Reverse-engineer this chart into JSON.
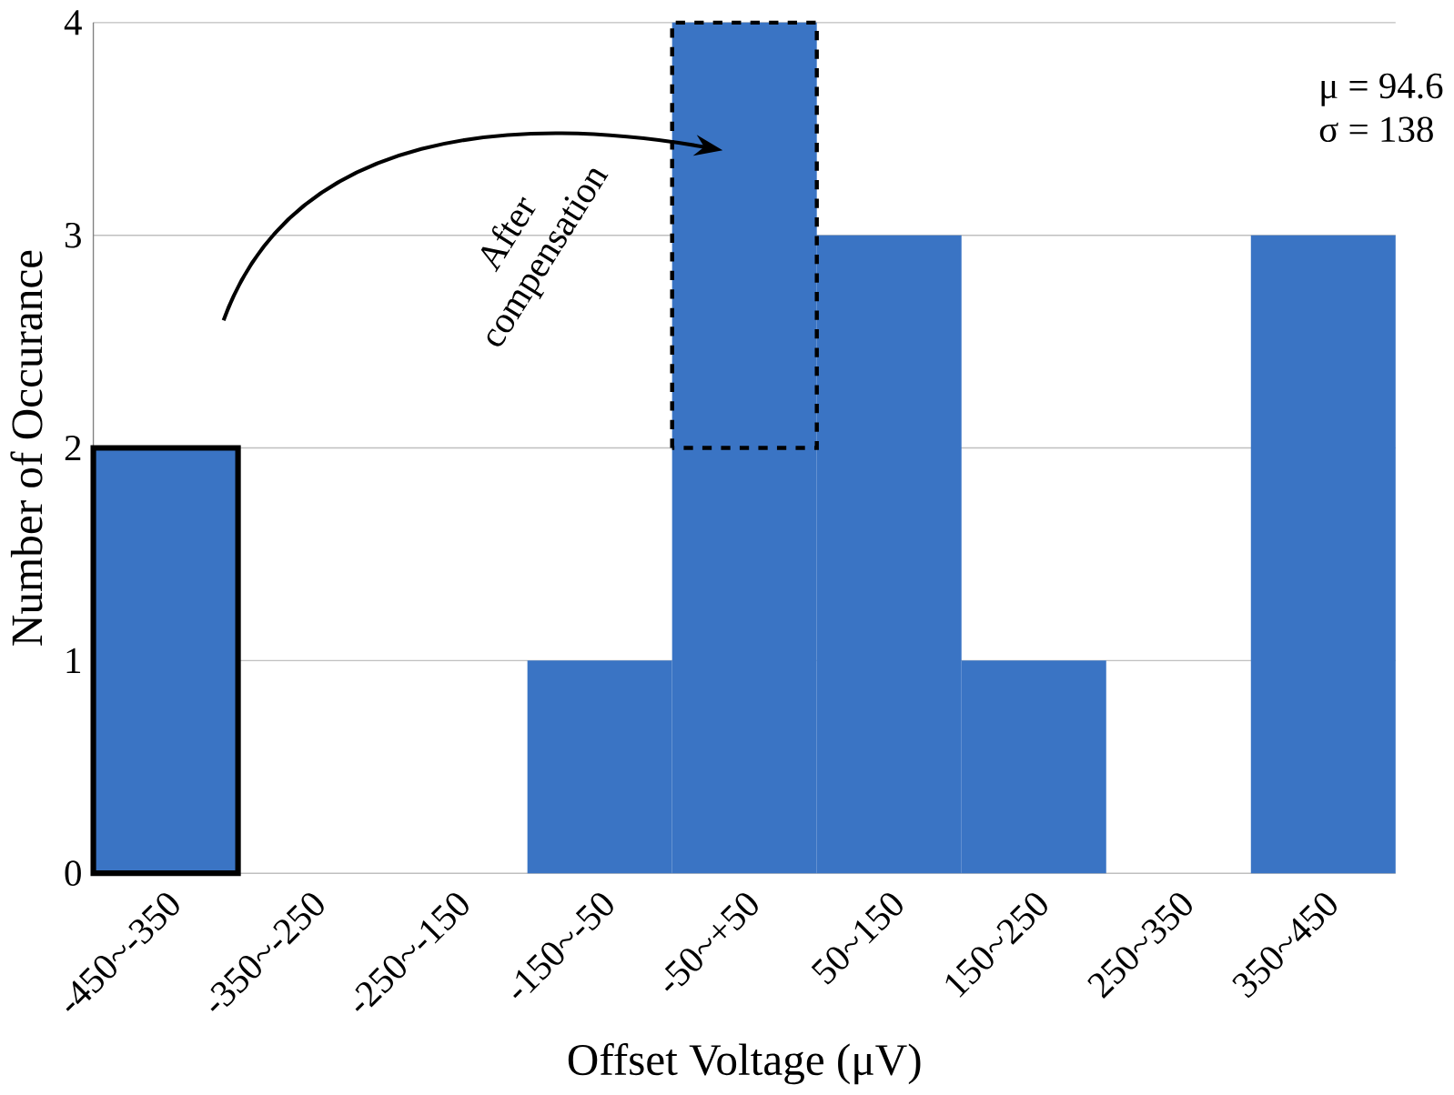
{
  "chart_data": {
    "type": "bar",
    "xlabel": "Offset Voltage (μV)",
    "ylabel": "Number of Occurance",
    "categories": [
      "-450~-350",
      "-350~-250",
      "-250~-150",
      "-150~-50",
      "-50~+50",
      "50~150",
      "150~250",
      "250~350",
      "350~450"
    ],
    "values": [
      2,
      0,
      0,
      1,
      4,
      3,
      1,
      0,
      3
    ],
    "color": "#3a74c4",
    "ylim": [
      0,
      4
    ],
    "yticks": [
      0,
      1,
      2,
      3,
      4
    ],
    "grid": "y",
    "annotations": [
      "μ = 94.6",
      "σ = 138",
      "After compensation"
    ]
  }
}
